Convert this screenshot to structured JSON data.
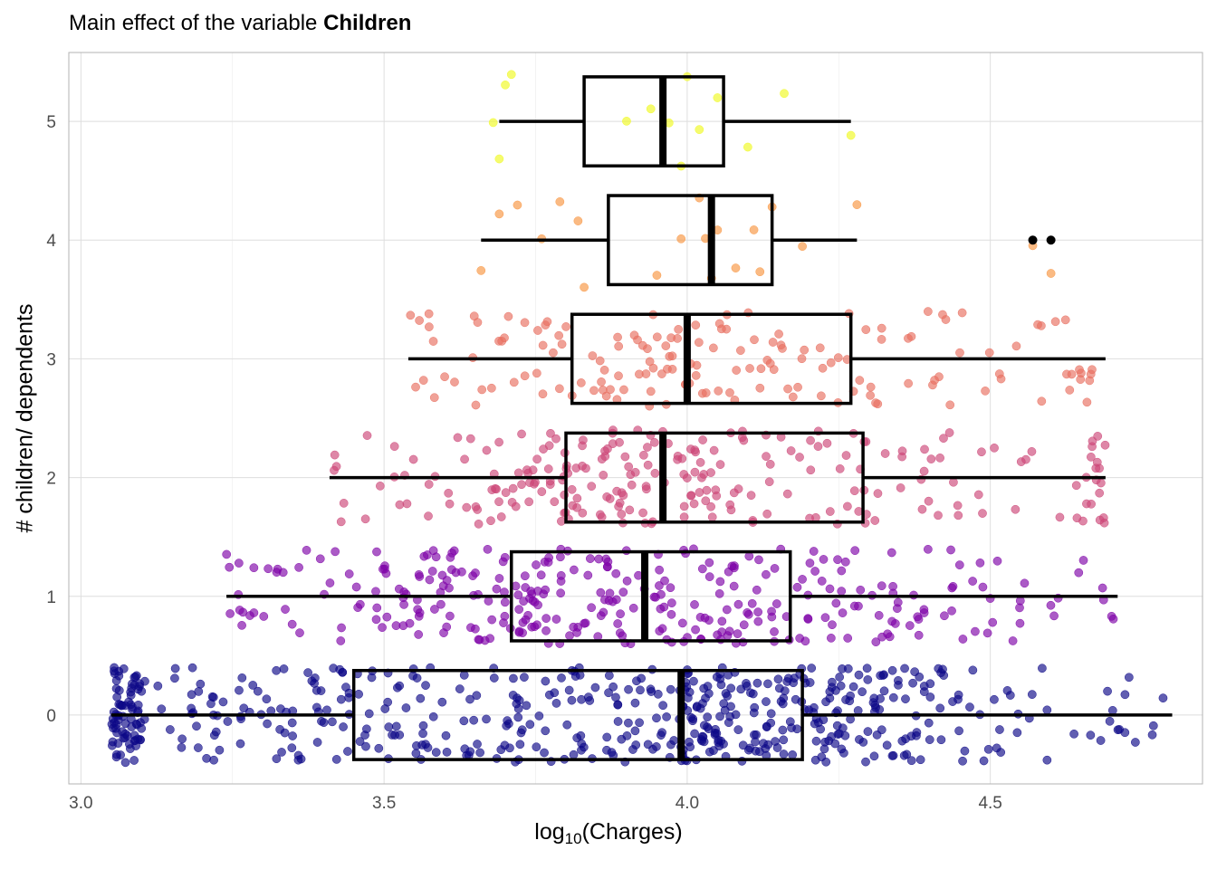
{
  "title": {
    "prefix": "Main effect of the variable ",
    "emphasis": "Children"
  },
  "chart_data": {
    "type": "boxplot",
    "orientation": "horizontal",
    "title": "Main effect of the variable Children",
    "xlabel_base": "log",
    "xlabel_sub": "10",
    "xlabel_rest": "(Charges)",
    "ylabel": "# children/ dependents",
    "xlim": [
      2.98,
      4.85
    ],
    "ylim": [
      -0.58,
      5.58
    ],
    "x_ticks": [
      3.0,
      3.5,
      4.0,
      4.5
    ],
    "x_tick_labels": [
      "3.0",
      "3.5",
      "4.0",
      "4.5"
    ],
    "y_ticks": [
      0,
      1,
      2,
      3,
      4,
      5
    ],
    "y_tick_labels": [
      "0",
      "1",
      "2",
      "3",
      "4",
      "5"
    ],
    "grid": true,
    "legend": "none",
    "categories": [
      0,
      1,
      2,
      3,
      4,
      5
    ],
    "colors": [
      "#0D0887",
      "#7E03A8",
      "#CC4778",
      "#E86E5F",
      "#F89540",
      "#F0F921"
    ],
    "boxes": [
      {
        "children": 0,
        "whisker_low": 3.05,
        "q1": 3.45,
        "median": 3.99,
        "q3": 4.19,
        "whisker_high": 4.8
      },
      {
        "children": 1,
        "whisker_low": 3.24,
        "q1": 3.71,
        "median": 3.93,
        "q3": 4.17,
        "whisker_high": 4.71
      },
      {
        "children": 2,
        "whisker_low": 3.41,
        "q1": 3.8,
        "median": 3.96,
        "q3": 4.29,
        "whisker_high": 4.69
      },
      {
        "children": 3,
        "whisker_low": 3.54,
        "q1": 3.81,
        "median": 4.0,
        "q3": 4.27,
        "whisker_high": 4.69
      },
      {
        "children": 4,
        "whisker_low": 3.66,
        "q1": 3.87,
        "median": 4.04,
        "q3": 4.14,
        "whisker_high": 4.28
      },
      {
        "children": 5,
        "whisker_low": 3.69,
        "q1": 3.83,
        "median": 3.96,
        "q3": 4.06,
        "whisker_high": 4.27
      }
    ],
    "outliers": [
      {
        "children": 4,
        "x": 4.57
      },
      {
        "children": 4,
        "x": 4.6
      }
    ],
    "jitter_points": {
      "group_sizes": [
        574,
        324,
        240,
        157,
        25,
        18
      ],
      "jitter_height": 0.4,
      "point_alpha": 0.65,
      "explicit": {
        "4": [
          3.66,
          3.69,
          3.72,
          3.76,
          3.79,
          3.82,
          3.83,
          3.95,
          3.99,
          4.02,
          4.03,
          4.04,
          4.05,
          4.08,
          4.11,
          4.12,
          4.14,
          4.19,
          4.28,
          4.57,
          4.6
        ],
        "5": [
          3.68,
          3.69,
          3.7,
          3.71,
          3.9,
          3.94,
          3.97,
          3.99,
          4.0,
          4.02,
          4.05,
          4.1,
          4.16,
          4.27
        ]
      }
    }
  }
}
